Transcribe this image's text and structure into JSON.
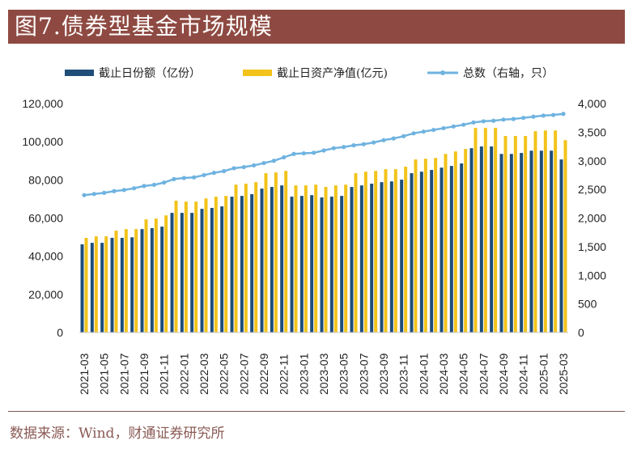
{
  "header": {
    "title": "图7.债券型基金市场规模"
  },
  "footer": {
    "source": "数据来源：Wind，财通证券研究所"
  },
  "colors": {
    "title_bg": "#8e4a42",
    "share": "#1f4e79",
    "nav": "#f2c31a",
    "count": "#6fb3e0",
    "footer_text": "#8a5a55"
  },
  "chart_data": {
    "type": "bar",
    "title": "债券型基金市场规模",
    "xlabel": "",
    "ylabel": "",
    "y2label": "",
    "ylim": [
      0,
      120000
    ],
    "y2lim": [
      0,
      4000
    ],
    "yticks": [
      "0",
      "20,000",
      "40,000",
      "60,000",
      "80,000",
      "100,000",
      "120,000"
    ],
    "y2ticks": [
      "0",
      "500",
      "1,000",
      "1,500",
      "2,000",
      "2,500",
      "3,000",
      "3,500",
      "4,000"
    ],
    "grid": false,
    "legend_position": "top",
    "categories": [
      "2021-03",
      "2021-04",
      "2021-05",
      "2021-06",
      "2021-07",
      "2021-08",
      "2021-09",
      "2021-10",
      "2021-11",
      "2021-12",
      "2022-01",
      "2022-02",
      "2022-03",
      "2022-04",
      "2022-05",
      "2022-06",
      "2022-07",
      "2022-08",
      "2022-09",
      "2022-10",
      "2022-11",
      "2022-12",
      "2023-01",
      "2023-02",
      "2023-03",
      "2023-04",
      "2023-05",
      "2023-06",
      "2023-07",
      "2023-08",
      "2023-09",
      "2023-10",
      "2023-11",
      "2023-12",
      "2024-01",
      "2024-02",
      "2024-03",
      "2024-04",
      "2024-05",
      "2024-06",
      "2024-07",
      "2024-08",
      "2024-09",
      "2024-10",
      "2024-11",
      "2024-12",
      "2025-01",
      "2025-02",
      "2025-03"
    ],
    "xtick_labels": [
      "2021-03",
      "2021-05",
      "2021-07",
      "2021-09",
      "2021-11",
      "2022-01",
      "2022-03",
      "2022-05",
      "2022-07",
      "2022-09",
      "2022-11",
      "2023-01",
      "2023-03",
      "2023-05",
      "2023-07",
      "2023-09",
      "2023-11",
      "2024-01",
      "2024-03",
      "2024-05",
      "2024-07",
      "2024-09",
      "2024-11",
      "2025-01",
      "2025-03"
    ],
    "series": [
      {
        "name": "截止日份额（亿份）",
        "type": "bar",
        "axis": "left",
        "values": [
          46200,
          47000,
          47000,
          49600,
          49600,
          49900,
          54200,
          54700,
          55500,
          62700,
          62700,
          62700,
          64800,
          65300,
          66100,
          71200,
          71600,
          72500,
          75400,
          76300,
          77100,
          71200,
          71600,
          72000,
          70800,
          71200,
          71600,
          76300,
          77100,
          78000,
          78800,
          79200,
          80100,
          83500,
          84300,
          85200,
          86400,
          87300,
          88600,
          96600,
          97500,
          97500,
          93600,
          93600,
          94100,
          95300,
          95300,
          95300,
          90700
        ]
      },
      {
        "name": "截止日资产净值(亿元)",
        "type": "bar",
        "axis": "left",
        "values": [
          49600,
          50400,
          50400,
          53400,
          54200,
          54200,
          59300,
          59700,
          61400,
          69100,
          68600,
          68600,
          70300,
          71200,
          71600,
          77500,
          78000,
          78800,
          83500,
          83900,
          84700,
          77100,
          77100,
          77500,
          76300,
          77100,
          77500,
          83500,
          84300,
          84700,
          85600,
          85600,
          86900,
          90700,
          91100,
          91500,
          93600,
          94900,
          96200,
          107200,
          107200,
          107200,
          103000,
          103000,
          103000,
          105500,
          105900,
          105900,
          100800
        ]
      },
      {
        "name": "总数（右轴，只）",
        "type": "line",
        "axis": "right",
        "values": [
          2400,
          2420,
          2440,
          2470,
          2490,
          2520,
          2560,
          2580,
          2620,
          2680,
          2700,
          2710,
          2750,
          2790,
          2820,
          2870,
          2890,
          2920,
          2960,
          3000,
          3060,
          3120,
          3130,
          3140,
          3180,
          3220,
          3240,
          3270,
          3290,
          3320,
          3360,
          3390,
          3430,
          3480,
          3510,
          3540,
          3570,
          3600,
          3630,
          3670,
          3690,
          3700,
          3720,
          3730,
          3750,
          3770,
          3790,
          3800,
          3820
        ]
      }
    ]
  }
}
